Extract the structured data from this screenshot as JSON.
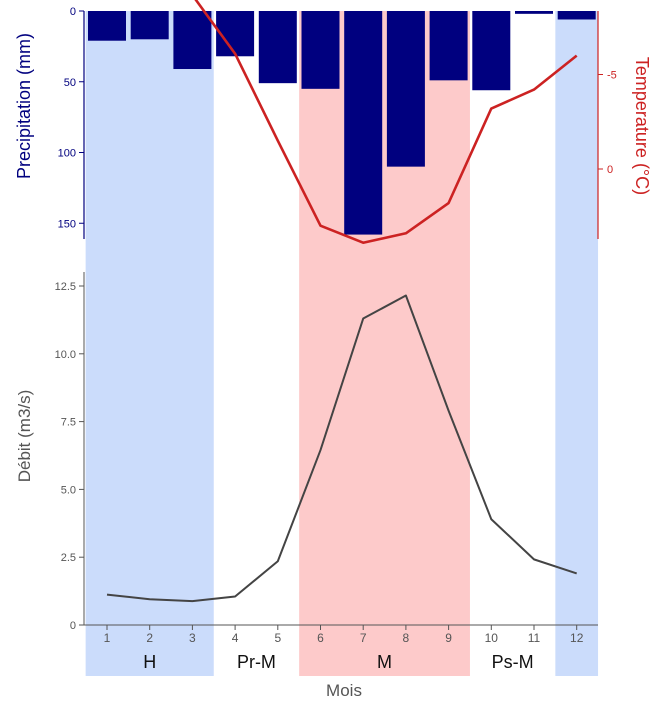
{
  "colors": {
    "precip_bar": "#00007f",
    "temperature_line": "#cc2222",
    "discharge_line": "#444444",
    "season_blue": "#cbdcfb",
    "season_pink": "#fdcaca",
    "axis_precip": "#00007f",
    "axis_temp": "#cc2222",
    "axis_neutral": "#555555"
  },
  "chart_data": [
    {
      "type": "bar",
      "title": "",
      "ylabel": "Precipitation (mm)",
      "ylim": [
        0,
        160
      ],
      "y_inverted": true,
      "yticks": [
        0,
        50,
        100,
        150
      ],
      "categories": [
        1,
        2,
        3,
        4,
        5,
        6,
        7,
        8,
        9,
        10,
        11,
        12
      ],
      "values": [
        21,
        20,
        41,
        32,
        51,
        55,
        158,
        110,
        49,
        56,
        2,
        6
      ]
    },
    {
      "type": "line",
      "title": "",
      "ylabel": "Temperature (°C)",
      "ylim": [
        -12,
        5
      ],
      "y_inverted": true,
      "yticks": [
        -5,
        0
      ],
      "ytick_labels": [
        "-5",
        "0"
      ],
      "x": [
        1,
        2,
        3,
        4,
        5,
        6,
        7,
        8,
        9,
        10,
        11,
        12
      ],
      "values": [
        -12,
        -11.5,
        -9.2,
        -6.1,
        -1.5,
        3.0,
        3.9,
        3.4,
        1.8,
        -3.2,
        -4.2,
        -6.0
      ]
    },
    {
      "type": "line",
      "title": "",
      "xlabel": "Mois",
      "ylabel": "Débit (m3/s)",
      "ylim": [
        0,
        13
      ],
      "yticks": [
        0,
        2.5,
        5.0,
        7.5,
        10.0,
        12.5
      ],
      "ytick_labels": [
        "0",
        "2.5",
        "5.0",
        "7.5",
        "10.0",
        "12.5"
      ],
      "x": [
        1,
        2,
        3,
        4,
        5,
        6,
        7,
        8,
        9,
        10,
        11,
        12
      ],
      "xtick_labels": [
        "1",
        "2",
        "3",
        "4",
        "5",
        "6",
        "7",
        "8",
        "9",
        "10",
        "11",
        "12"
      ],
      "values": [
        1.12,
        0.95,
        0.88,
        1.05,
        2.35,
        6.45,
        11.3,
        12.15,
        7.9,
        3.9,
        2.42,
        1.9
      ]
    }
  ],
  "seasons": [
    {
      "label": "H",
      "from": 0.5,
      "to": 3.5,
      "color": "season_blue"
    },
    {
      "label": "Pr-M",
      "from": 3.5,
      "to": 5.5,
      "color": "none"
    },
    {
      "label": "M",
      "from": 5.5,
      "to": 9.5,
      "color": "season_pink"
    },
    {
      "label": "Ps-M",
      "from": 9.5,
      "to": 11.5,
      "color": "none"
    },
    {
      "label": "",
      "from": 11.5,
      "to": 12.5,
      "color": "season_blue"
    }
  ]
}
